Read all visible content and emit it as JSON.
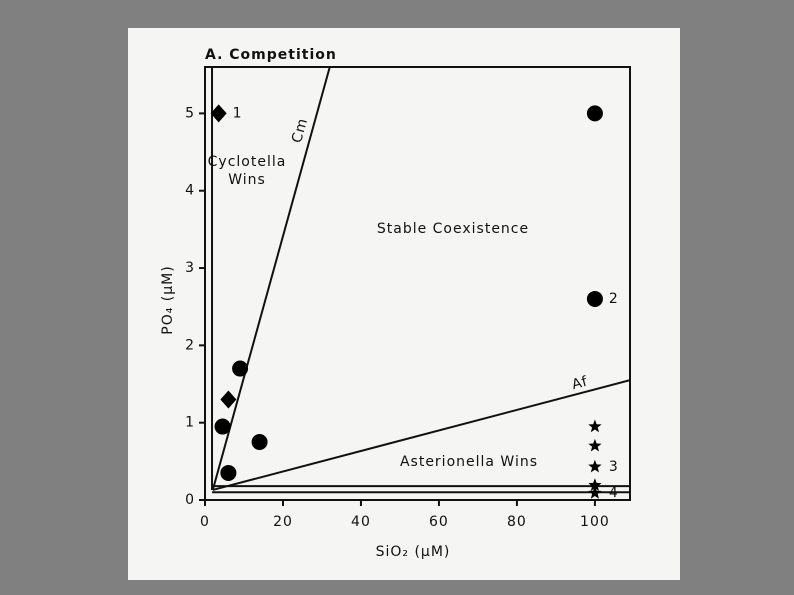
{
  "chart_data": {
    "type": "scatter",
    "title": "A. Competition",
    "xlabel": "SiO₂ (μM)",
    "ylabel": "PO₄ (μM)",
    "xlim": [
      0,
      109
    ],
    "ylim": [
      0,
      5.6
    ],
    "xticks": [
      0,
      20,
      40,
      60,
      80,
      100
    ],
    "yticks": [
      0,
      1,
      2,
      3,
      4,
      5
    ],
    "series": [
      {
        "marker": "diamond",
        "color": "#000000",
        "x": [
          3.5,
          6
        ],
        "y": [
          5.0,
          1.3
        ],
        "point_labels": [
          "1",
          null
        ]
      },
      {
        "marker": "circle",
        "color": "#000000",
        "x": [
          100,
          100,
          9,
          4.5,
          14,
          6
        ],
        "y": [
          5.0,
          2.6,
          1.7,
          0.95,
          0.75,
          0.35
        ],
        "point_labels": [
          null,
          "2",
          null,
          null,
          null,
          null
        ]
      },
      {
        "marker": "star",
        "color": "#000000",
        "x": [
          100,
          100,
          100,
          100,
          100
        ],
        "y": [
          0.95,
          0.7,
          0.43,
          0.19,
          0.09
        ],
        "point_labels": [
          null,
          null,
          "3",
          null,
          "4"
        ]
      }
    ],
    "lines": [
      {
        "label": "Cm",
        "x": [
          2,
          32
        ],
        "y": [
          0.13,
          5.6
        ]
      },
      {
        "label": "Af",
        "x": [
          2,
          109
        ],
        "y": [
          0.13,
          1.55
        ]
      },
      {
        "x": [
          1.8,
          1.8
        ],
        "y": [
          0.13,
          5.6
        ]
      },
      {
        "x": [
          1.8,
          109
        ],
        "y": [
          0.18,
          0.18
        ]
      },
      {
        "x": [
          1.8,
          109
        ],
        "y": [
          0.1,
          0.1
        ]
      }
    ],
    "annotations": [
      "Cyclotella",
      "Wins",
      "Stable Coexistence",
      "Asterionella Wins"
    ]
  }
}
